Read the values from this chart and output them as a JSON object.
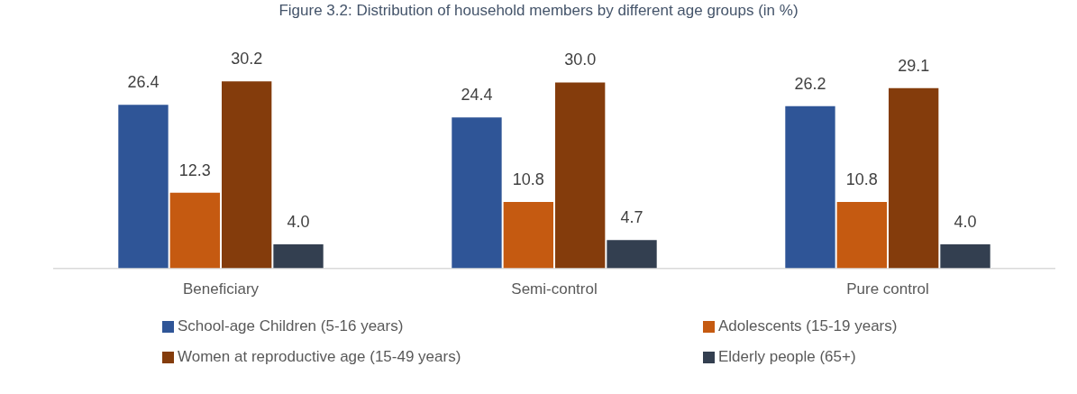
{
  "chart_data": {
    "type": "bar",
    "title": "Figure 3.2: Distribution of household members by different age groups (in %)",
    "categories": [
      "Beneficiary",
      "Semi-control",
      "Pure control"
    ],
    "series": [
      {
        "name": "School-age Children (5-16 years)",
        "color": "#2f5597",
        "values": [
          26.4,
          24.4,
          26.2
        ],
        "value_labels": [
          "26.4",
          "24.4",
          "26.2"
        ]
      },
      {
        "name": "Adolescents (15-19 years)",
        "color": "#c55a11",
        "values": [
          12.3,
          10.8,
          10.8
        ],
        "value_labels": [
          "12.3",
          "10.8",
          "10.8"
        ]
      },
      {
        "name": "Women at reproductive age (15-49 years)",
        "color": "#843c0c",
        "values": [
          30.2,
          30.0,
          29.1
        ],
        "value_labels": [
          "30.2",
          "30.0",
          "29.1"
        ]
      },
      {
        "name": "Elderly people (65+)",
        "color": "#333f50",
        "values": [
          4.0,
          4.7,
          4.0
        ],
        "value_labels": [
          "4.0",
          "4.7",
          "4.0"
        ]
      }
    ],
    "grid": false,
    "legend": "bottom",
    "tick_labels": "x"
  }
}
